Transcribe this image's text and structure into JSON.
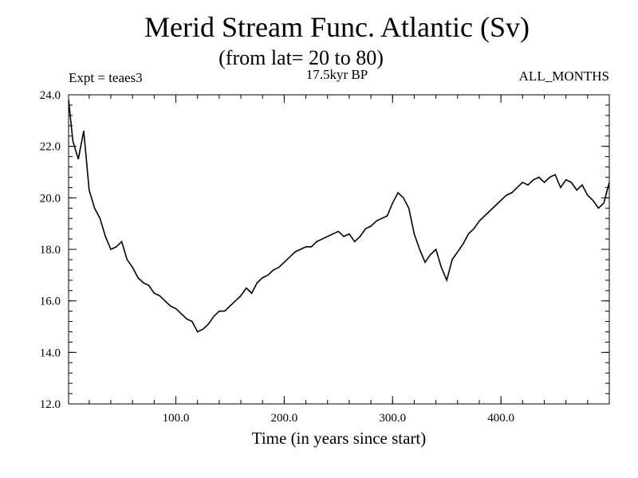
{
  "chart_data": {
    "type": "line",
    "title": "Merid Stream Func. Atlantic (Sv)",
    "subtitle": "(from lat= 20 to 80)",
    "expt_label": "Expt = teaes3",
    "period_label": "17.5kyr BP",
    "months_label": "ALL_MONTHS",
    "xlabel": "Time (in years since start)",
    "ylabel": "",
    "xlim": [
      1,
      500
    ],
    "ylim": [
      12.0,
      24.0
    ],
    "x_ticks": [
      100,
      200,
      300,
      400
    ],
    "x_tick_labels": [
      "100.0",
      "200.0",
      "300.0",
      "400.0"
    ],
    "y_ticks": [
      12,
      14,
      16,
      18,
      20,
      22,
      24
    ],
    "y_tick_labels": [
      "12.0",
      "14.0",
      "16.0",
      "18.0",
      "20.0",
      "22.0",
      "24.0"
    ],
    "series": [
      {
        "name": "Merid Stream Func. Atlantic",
        "x": [
          1,
          5,
          10,
          15,
          20,
          25,
          30,
          35,
          40,
          45,
          50,
          55,
          60,
          65,
          70,
          75,
          80,
          85,
          90,
          95,
          100,
          105,
          110,
          115,
          120,
          125,
          130,
          135,
          140,
          145,
          150,
          155,
          160,
          165,
          170,
          175,
          180,
          185,
          190,
          195,
          200,
          205,
          210,
          215,
          220,
          225,
          230,
          235,
          240,
          245,
          250,
          255,
          260,
          265,
          270,
          275,
          280,
          285,
          290,
          295,
          300,
          305,
          310,
          315,
          320,
          325,
          330,
          335,
          340,
          345,
          350,
          355,
          360,
          365,
          370,
          375,
          380,
          385,
          390,
          395,
          400,
          405,
          410,
          415,
          420,
          425,
          430,
          435,
          440,
          445,
          450,
          455,
          460,
          465,
          470,
          475,
          480,
          485,
          490,
          495,
          500
        ],
        "values": [
          23.8,
          22.2,
          21.5,
          22.6,
          20.3,
          19.6,
          19.2,
          18.5,
          18.0,
          18.1,
          18.3,
          17.6,
          17.3,
          16.9,
          16.7,
          16.6,
          16.3,
          16.2,
          16.0,
          15.8,
          15.7,
          15.5,
          15.3,
          15.2,
          14.8,
          14.9,
          15.1,
          15.4,
          15.6,
          15.6,
          15.8,
          16.0,
          16.2,
          16.5,
          16.3,
          16.7,
          16.9,
          17.0,
          17.2,
          17.3,
          17.5,
          17.7,
          17.9,
          18.0,
          18.1,
          18.1,
          18.3,
          18.4,
          18.5,
          18.6,
          18.7,
          18.5,
          18.6,
          18.3,
          18.5,
          18.8,
          18.9,
          19.1,
          19.2,
          19.3,
          19.8,
          20.2,
          20.0,
          19.6,
          18.6,
          18.0,
          17.5,
          17.8,
          18.0,
          17.3,
          16.8,
          17.6,
          17.9,
          18.2,
          18.6,
          18.8,
          19.1,
          19.3,
          19.5,
          19.7,
          19.9,
          20.1,
          20.2,
          20.4,
          20.6,
          20.5,
          20.7,
          20.8,
          20.6,
          20.8,
          20.9,
          20.4,
          20.7,
          20.6,
          20.3,
          20.5,
          20.1,
          19.9,
          19.6,
          19.8,
          20.6
        ]
      }
    ]
  }
}
